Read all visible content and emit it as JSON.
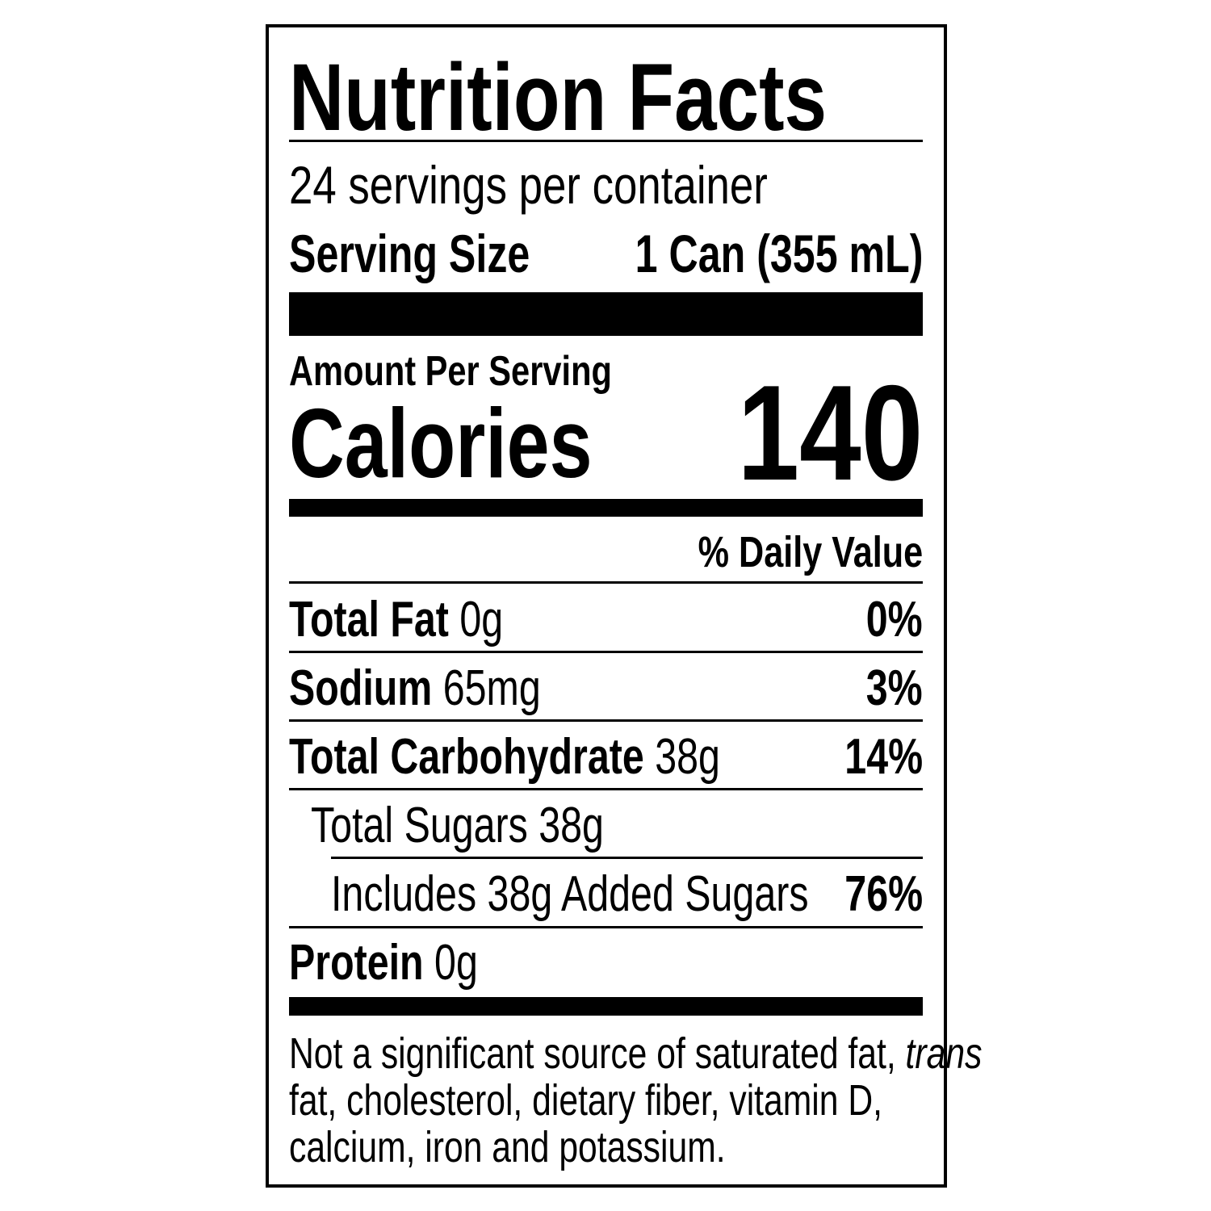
{
  "title": "Nutrition Facts",
  "servings_per_container": "24 servings per container",
  "serving_size": {
    "label": "Serving Size",
    "value": "1 Can (355 mL)"
  },
  "amount_per_serving": "Amount Per Serving",
  "calories": {
    "label": "Calories",
    "value": "140"
  },
  "daily_value_header": "% Daily Value",
  "nutrients": [
    {
      "name": "Total Fat",
      "amount": "0g",
      "dv": "0%"
    },
    {
      "name": "Sodium",
      "amount": "65mg",
      "dv": "3%"
    },
    {
      "name": "Total Carbohydrate",
      "amount": "38g",
      "dv": "14%"
    },
    {
      "name": "Total Sugars 38g"
    },
    {
      "name": "Includes 38g Added Sugars",
      "dv": "76%"
    },
    {
      "name": "Protein",
      "amount": "0g"
    }
  ],
  "footnote": {
    "line1": "Not a significant source of saturated fat,",
    "line1_italic": "trans",
    "line2": "fat, cholesterol, dietary fiber, vitamin D,",
    "line3": "calcium, iron and potassium."
  }
}
